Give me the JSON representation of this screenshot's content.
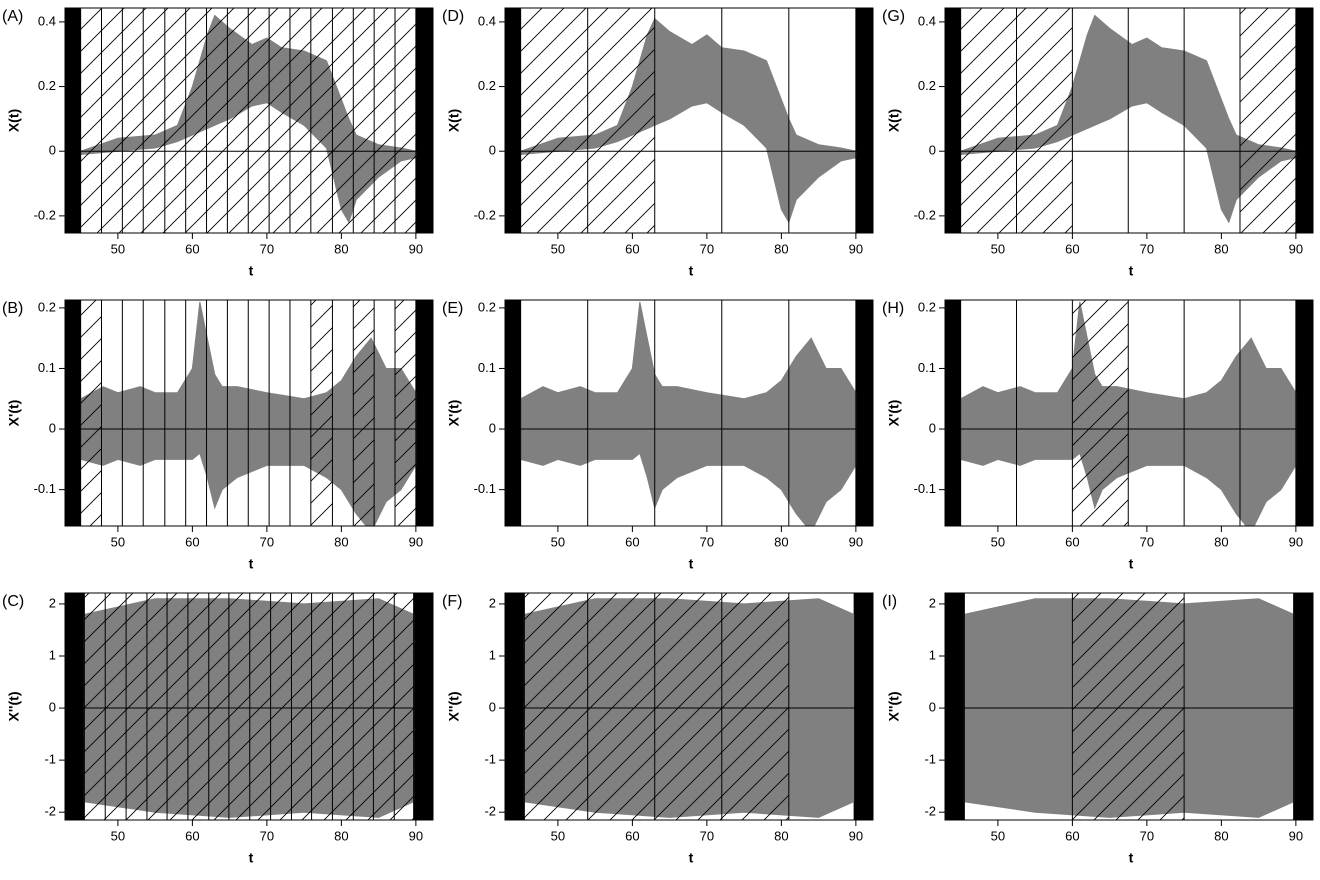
{
  "chart_data": [
    {
      "type": "band",
      "panel_label": "(A)",
      "xlabel": "t",
      "ylabel": "X(t)",
      "color": "#808080",
      "xlim": [
        42.9,
        92.3
      ],
      "ylim": [
        -0.253,
        0.443
      ],
      "xticks": [
        50,
        60,
        70,
        80,
        90
      ],
      "yticks": [
        -0.2,
        0.0,
        0.2,
        0.4
      ],
      "hline": 0,
      "domain": [
        45,
        90
      ],
      "x": [
        45,
        50,
        55,
        58,
        60,
        62,
        63,
        65,
        68,
        70,
        72,
        75,
        78,
        80,
        81,
        82,
        85,
        88,
        90
      ],
      "upper": [
        0.0,
        0.04,
        0.05,
        0.08,
        0.2,
        0.36,
        0.42,
        0.38,
        0.33,
        0.35,
        0.32,
        0.31,
        0.28,
        0.16,
        0.1,
        0.05,
        0.02,
        0.01,
        0.0
      ],
      "lower": [
        -0.01,
        0.0,
        0.01,
        0.03,
        0.05,
        0.07,
        0.08,
        0.1,
        0.14,
        0.15,
        0.12,
        0.08,
        0.01,
        -0.18,
        -0.22,
        -0.15,
        -0.08,
        -0.03,
        -0.02
      ],
      "breaks": [
        45,
        47.8,
        50.6,
        53.4,
        56.3,
        59.1,
        61.9,
        64.7,
        67.5,
        70.3,
        73.1,
        75.9,
        78.8,
        81.6,
        84.4,
        87.2,
        90
      ],
      "hatched": [
        [
          45,
          90
        ]
      ]
    },
    {
      "type": "band",
      "panel_label": "(B)",
      "xlabel": "t",
      "ylabel": "X'(t)",
      "color": "#808080",
      "xlim": [
        42.9,
        92.3
      ],
      "ylim": [
        -0.16,
        0.213
      ],
      "xticks": [
        50,
        60,
        70,
        80,
        90
      ],
      "yticks": [
        -0.1,
        0.0,
        0.1,
        0.2
      ],
      "hline": 0,
      "domain": [
        45,
        90
      ],
      "x": [
        45,
        48,
        50,
        53,
        55,
        58,
        60,
        61,
        62,
        63,
        64,
        66,
        70,
        75,
        78,
        80,
        82,
        84,
        86,
        88,
        90
      ],
      "upper": [
        0.05,
        0.07,
        0.06,
        0.07,
        0.06,
        0.06,
        0.1,
        0.21,
        0.15,
        0.09,
        0.07,
        0.07,
        0.06,
        0.05,
        0.06,
        0.08,
        0.12,
        0.15,
        0.1,
        0.1,
        0.06
      ],
      "lower": [
        -0.05,
        -0.06,
        -0.05,
        -0.06,
        -0.05,
        -0.05,
        -0.05,
        -0.04,
        -0.08,
        -0.13,
        -0.1,
        -0.08,
        -0.06,
        -0.06,
        -0.08,
        -0.1,
        -0.14,
        -0.17,
        -0.12,
        -0.1,
        -0.06
      ],
      "breaks": [
        45,
        47.8,
        50.6,
        53.4,
        56.3,
        59.1,
        61.9,
        64.7,
        67.5,
        70.3,
        73.1,
        75.9,
        78.8,
        81.6,
        84.4,
        87.2,
        90
      ],
      "hatched": [
        [
          45,
          47.8
        ],
        [
          75.9,
          78.8
        ],
        [
          81.6,
          84.4
        ],
        [
          87.2,
          90
        ]
      ]
    },
    {
      "type": "band",
      "panel_label": "(C)",
      "xlabel": "t",
      "ylabel": "X''(t)",
      "color": "#808080",
      "xlim": [
        42.9,
        92.3
      ],
      "ylim": [
        -2.15,
        2.21
      ],
      "xticks": [
        50,
        60,
        70,
        80,
        90
      ],
      "yticks": [
        -2,
        -1,
        0,
        1,
        2
      ],
      "hline": 0,
      "domain": [
        45.5,
        89.7
      ],
      "x": [
        45.5,
        55,
        65,
        75,
        85,
        89.7
      ],
      "upper": [
        1.8,
        2.1,
        2.1,
        2.0,
        2.1,
        1.8
      ],
      "lower": [
        -1.8,
        -2.0,
        -2.1,
        -2.0,
        -2.1,
        -1.8
      ],
      "breaks": [
        45.5,
        48.3,
        51.1,
        53.9,
        56.6,
        59.4,
        62.2,
        64.9,
        67.7,
        70.5,
        73.3,
        76.0,
        78.8,
        81.6,
        84.3,
        87.1,
        89.7
      ],
      "hatched": [
        [
          45.5,
          89.7
        ]
      ]
    },
    {
      "type": "band",
      "panel_label": "(D)",
      "xlabel": "t",
      "ylabel": "X(t)",
      "color": "#808080",
      "xlim": [
        42.9,
        92.3
      ],
      "ylim": [
        -0.253,
        0.443
      ],
      "xticks": [
        50,
        60,
        70,
        80,
        90
      ],
      "yticks": [
        -0.2,
        0.0,
        0.2,
        0.4
      ],
      "hline": 0,
      "domain": [
        45,
        90
      ],
      "x": [
        45,
        50,
        55,
        58,
        60,
        62,
        63,
        65,
        68,
        70,
        72,
        75,
        78,
        80,
        81,
        82,
        85,
        88,
        90
      ],
      "upper": [
        0.0,
        0.04,
        0.05,
        0.08,
        0.2,
        0.36,
        0.41,
        0.37,
        0.33,
        0.36,
        0.32,
        0.31,
        0.28,
        0.16,
        0.1,
        0.05,
        0.02,
        0.01,
        0.0
      ],
      "lower": [
        -0.01,
        0.0,
        0.01,
        0.03,
        0.05,
        0.07,
        0.08,
        0.1,
        0.14,
        0.15,
        0.12,
        0.08,
        0.01,
        -0.18,
        -0.22,
        -0.15,
        -0.08,
        -0.03,
        -0.02
      ],
      "breaks": [
        45,
        54,
        63,
        72,
        81,
        90
      ],
      "hatched": [
        [
          45,
          63
        ]
      ]
    },
    {
      "type": "band",
      "panel_label": "(E)",
      "xlabel": "t",
      "ylabel": "X'(t)",
      "color": "#808080",
      "xlim": [
        42.9,
        92.3
      ],
      "ylim": [
        -0.16,
        0.213
      ],
      "xticks": [
        50,
        60,
        70,
        80,
        90
      ],
      "yticks": [
        -0.1,
        0.0,
        0.1,
        0.2
      ],
      "hline": 0,
      "domain": [
        45,
        90
      ],
      "x": [
        45,
        48,
        50,
        53,
        55,
        58,
        60,
        61,
        62,
        63,
        64,
        66,
        70,
        75,
        78,
        80,
        82,
        84,
        86,
        88,
        90
      ],
      "upper": [
        0.05,
        0.07,
        0.06,
        0.07,
        0.06,
        0.06,
        0.1,
        0.21,
        0.15,
        0.09,
        0.07,
        0.07,
        0.06,
        0.05,
        0.06,
        0.08,
        0.12,
        0.15,
        0.1,
        0.1,
        0.06
      ],
      "lower": [
        -0.05,
        -0.06,
        -0.05,
        -0.06,
        -0.05,
        -0.05,
        -0.05,
        -0.04,
        -0.08,
        -0.13,
        -0.1,
        -0.08,
        -0.06,
        -0.06,
        -0.08,
        -0.1,
        -0.14,
        -0.17,
        -0.12,
        -0.1,
        -0.06
      ],
      "breaks": [
        45,
        54,
        63,
        72,
        81,
        90
      ],
      "hatched": []
    },
    {
      "type": "band",
      "panel_label": "(F)",
      "xlabel": "t",
      "ylabel": "X''(t)",
      "color": "#808080",
      "xlim": [
        42.9,
        92.3
      ],
      "ylim": [
        -2.15,
        2.21
      ],
      "xticks": [
        50,
        60,
        70,
        80,
        90
      ],
      "yticks": [
        -2,
        -1,
        0,
        1,
        2
      ],
      "hline": 0,
      "domain": [
        45.5,
        89.7
      ],
      "x": [
        45.5,
        55,
        65,
        75,
        85,
        89.7
      ],
      "upper": [
        1.8,
        2.1,
        2.1,
        2.0,
        2.1,
        1.8
      ],
      "lower": [
        -1.8,
        -2.0,
        -2.1,
        -2.0,
        -2.1,
        -1.8
      ],
      "breaks": [
        45.5,
        54,
        63,
        72,
        81
      ],
      "hatched": [
        [
          45.5,
          81
        ]
      ]
    },
    {
      "type": "band",
      "panel_label": "(G)",
      "xlabel": "t",
      "ylabel": "X(t)",
      "color": "#808080",
      "xlim": [
        42.9,
        92.3
      ],
      "ylim": [
        -0.253,
        0.443
      ],
      "xticks": [
        50,
        60,
        70,
        80,
        90
      ],
      "yticks": [
        -0.2,
        0.0,
        0.2,
        0.4
      ],
      "hline": 0,
      "domain": [
        45,
        90
      ],
      "x": [
        45,
        50,
        55,
        58,
        60,
        62,
        63,
        65,
        68,
        70,
        72,
        75,
        78,
        80,
        81,
        82,
        85,
        88,
        90
      ],
      "upper": [
        0.0,
        0.04,
        0.05,
        0.08,
        0.2,
        0.36,
        0.42,
        0.38,
        0.33,
        0.35,
        0.32,
        0.31,
        0.28,
        0.16,
        0.1,
        0.05,
        0.02,
        0.01,
        0.0
      ],
      "lower": [
        -0.01,
        0.0,
        0.01,
        0.03,
        0.05,
        0.07,
        0.08,
        0.1,
        0.14,
        0.15,
        0.12,
        0.08,
        0.01,
        -0.18,
        -0.22,
        -0.15,
        -0.08,
        -0.03,
        -0.02
      ],
      "breaks": [
        45,
        52.5,
        60,
        67.5,
        75,
        82.5,
        90
      ],
      "hatched": [
        [
          45,
          60
        ],
        [
          82.5,
          90
        ]
      ]
    },
    {
      "type": "band",
      "panel_label": "(H)",
      "xlabel": "t",
      "ylabel": "X'(t)",
      "color": "#808080",
      "xlim": [
        42.9,
        92.3
      ],
      "ylim": [
        -0.16,
        0.213
      ],
      "xticks": [
        50,
        60,
        70,
        80,
        90
      ],
      "yticks": [
        -0.1,
        0.0,
        0.1,
        0.2
      ],
      "hline": 0,
      "domain": [
        45,
        90
      ],
      "x": [
        45,
        48,
        50,
        53,
        55,
        58,
        60,
        61,
        62,
        63,
        64,
        66,
        70,
        75,
        78,
        80,
        82,
        84,
        86,
        88,
        90
      ],
      "upper": [
        0.05,
        0.07,
        0.06,
        0.07,
        0.06,
        0.06,
        0.1,
        0.21,
        0.15,
        0.09,
        0.07,
        0.07,
        0.06,
        0.05,
        0.06,
        0.08,
        0.12,
        0.15,
        0.1,
        0.1,
        0.06
      ],
      "lower": [
        -0.05,
        -0.06,
        -0.05,
        -0.06,
        -0.05,
        -0.05,
        -0.05,
        -0.04,
        -0.08,
        -0.13,
        -0.1,
        -0.08,
        -0.06,
        -0.06,
        -0.08,
        -0.1,
        -0.14,
        -0.17,
        -0.12,
        -0.1,
        -0.06
      ],
      "breaks": [
        45,
        52.5,
        60,
        67.5,
        75,
        82.5,
        90
      ],
      "hatched": [
        [
          60,
          67.5
        ]
      ]
    },
    {
      "type": "band",
      "panel_label": "(I)",
      "xlabel": "t",
      "ylabel": "X''(t)",
      "color": "#808080",
      "xlim": [
        42.9,
        92.3
      ],
      "ylim": [
        -2.15,
        2.21
      ],
      "xticks": [
        50,
        60,
        70,
        80,
        90
      ],
      "yticks": [
        -2,
        -1,
        0,
        1,
        2
      ],
      "hline": 0,
      "domain": [
        45.5,
        89.7
      ],
      "x": [
        45.5,
        55,
        65,
        75,
        85,
        89.7
      ],
      "upper": [
        1.8,
        2.1,
        2.1,
        2.0,
        2.1,
        1.8
      ],
      "lower": [
        -1.8,
        -2.0,
        -2.1,
        -2.0,
        -2.1,
        -1.8
      ],
      "breaks": [
        45.5,
        60,
        75,
        89.7
      ],
      "hatched": [
        [
          60,
          75
        ]
      ]
    }
  ]
}
